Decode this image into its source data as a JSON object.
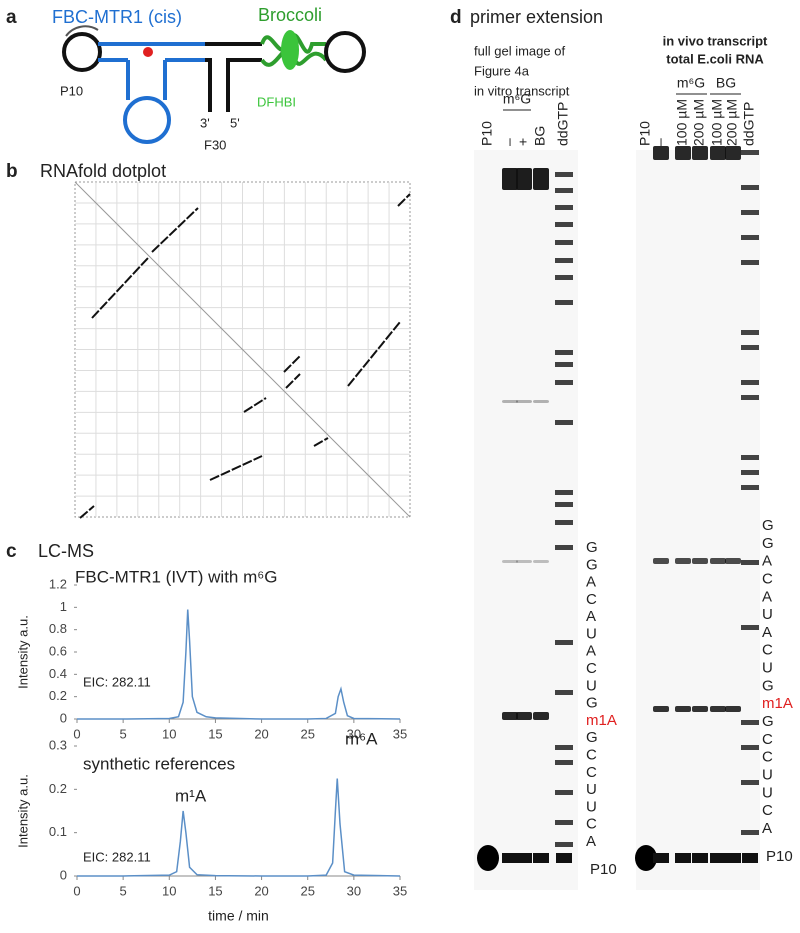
{
  "panel_a": {
    "letter": "a",
    "title": "FBC-MTR1 (cis)",
    "broccoli": "Broccoli",
    "labels": {
      "p10": "P10",
      "three_prime": "3'",
      "five_prime": "5'",
      "f30": "F30",
      "dfhbi": "DFHBI"
    }
  },
  "panel_b": {
    "letter": "b",
    "title": "RNAfold dotplot"
  },
  "panel_c": {
    "letter": "c",
    "title": "LC-MS"
  },
  "chart_data": [
    {
      "type": "line",
      "title": "FBC-MTR1 (IVT) with m⁶G",
      "y_label": "Intensity a.u.",
      "annotations": [
        "EIC: 282.11"
      ],
      "x": [
        0,
        5,
        10,
        11,
        11.5,
        11.8,
        12,
        12.2,
        12.5,
        13,
        14,
        15,
        20,
        25,
        27,
        28,
        28.3,
        28.6,
        28.9,
        29.3,
        30,
        35
      ],
      "series": [
        {
          "color": "#5b8fc7",
          "values": [
            0,
            0,
            0.005,
            0.02,
            0.15,
            0.6,
            0.98,
            0.7,
            0.2,
            0.06,
            0.02,
            0.01,
            0,
            0,
            0.005,
            0.05,
            0.2,
            0.27,
            0.15,
            0.03,
            0.005,
            0
          ]
        }
      ],
      "xlim": [
        0,
        35
      ],
      "xticks": [
        0,
        5,
        10,
        15,
        20,
        25,
        30,
        35
      ],
      "ylim": [
        0,
        1.2
      ],
      "yticks": [
        0,
        0.2,
        0.4,
        0.6,
        0.8,
        1,
        1.2
      ]
    },
    {
      "type": "line",
      "title": "synthetic references",
      "y_label": "Intensity a.u.",
      "x_label": "time / min",
      "annotations": [
        "EIC: 282.11",
        "m¹A",
        "m⁶A"
      ],
      "x": [
        0,
        5,
        10,
        10.8,
        11.2,
        11.5,
        11.8,
        12.2,
        13,
        15,
        20,
        25,
        27,
        27.7,
        28,
        28.2,
        28.5,
        29,
        30,
        35
      ],
      "series": [
        {
          "color": "#5b8fc7",
          "values": [
            0,
            0,
            0.002,
            0.01,
            0.08,
            0.15,
            0.1,
            0.02,
            0.003,
            0.001,
            0,
            0,
            0.002,
            0.03,
            0.15,
            0.225,
            0.12,
            0.01,
            0.002,
            0
          ]
        }
      ],
      "xlim": [
        0,
        35
      ],
      "xticks": [
        0,
        5,
        10,
        15,
        20,
        25,
        30,
        35
      ],
      "ylim": [
        0,
        0.3
      ],
      "yticks": [
        0,
        0.1,
        0.2,
        0.3
      ]
    }
  ],
  "panel_d": {
    "letter": "d",
    "title": "primer extension",
    "left": {
      "caption": [
        "full gel image of",
        "Figure 4a",
        "in vitro transcript"
      ],
      "lanes": [
        "P10",
        "–",
        "+",
        "BG",
        "ddGTP"
      ],
      "group": "m⁶G",
      "sequence": [
        "G",
        "G",
        "A",
        "C",
        "A",
        "U",
        "A",
        "C",
        "U",
        "G",
        "m1A",
        "G",
        "C",
        "C",
        "U",
        "U",
        "C",
        "A"
      ],
      "marker": "P10"
    },
    "right": {
      "caption": [
        "in vivo transcript",
        "total E.coli RNA"
      ],
      "lanes": [
        "P10",
        "–",
        "100 µM",
        "200 µM",
        "100 µM",
        "200 µM",
        "ddGTP"
      ],
      "groups": [
        "m⁶G",
        "BG"
      ],
      "sequence": [
        "G",
        "G",
        "A",
        "C",
        "A",
        "U",
        "A",
        "C",
        "U",
        "G",
        "m1A",
        "G",
        "C",
        "C",
        "U",
        "U",
        "C",
        "A"
      ],
      "marker": "P10"
    }
  }
}
